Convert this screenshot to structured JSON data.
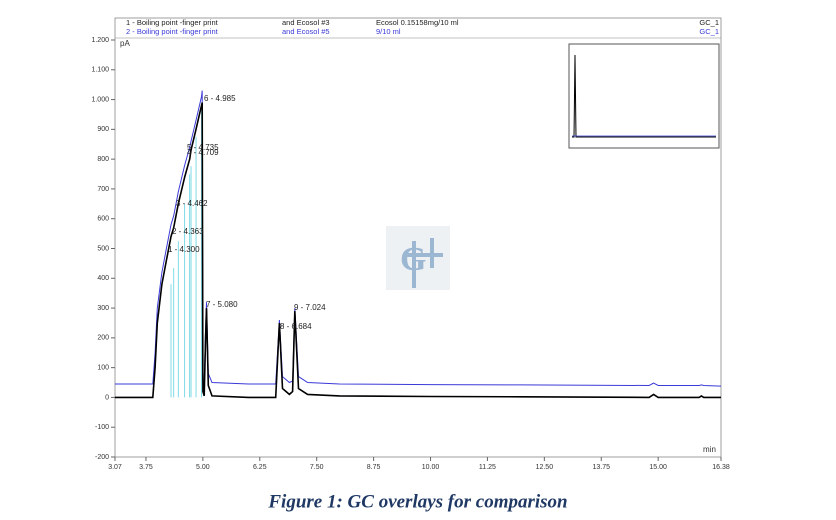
{
  "chart_data": {
    "type": "line",
    "header": [
      [
        "1 - Boiling point -finger print",
        "and Ecosol #3",
        "Ecosol 0.15158mg/10 ml",
        "GC_1"
      ],
      [
        "2 - Boiling point -finger print",
        "and Ecosol #5",
        "9/10 ml",
        "GC_1"
      ]
    ],
    "y_label": "pA",
    "x_label": "min",
    "caption": "Figure 1: GC overlays for comparison",
    "x": [
      3.07,
      3.9,
      3.95,
      4.0,
      4.1,
      4.2,
      4.3,
      4.36,
      4.46,
      4.6,
      4.71,
      4.74,
      4.85,
      4.97,
      4.985,
      5.0,
      5.03,
      5.06,
      5.08,
      5.12,
      5.2,
      6.0,
      6.6,
      6.68,
      6.75,
      6.9,
      6.97,
      7.02,
      7.1,
      7.3,
      8,
      10,
      12,
      14.8,
      14.9,
      15,
      15.9,
      15.95,
      16,
      16.38
    ],
    "series": [
      {
        "name": "1",
        "color": "#000000",
        "values": [
          0,
          0,
          100,
          250,
          380,
          460,
          540,
          570,
          650,
          740,
          800,
          830,
          900,
          980,
          990,
          20,
          5,
          200,
          300,
          40,
          5,
          0,
          0,
          250,
          30,
          10,
          20,
          290,
          30,
          10,
          5,
          3,
          2,
          0,
          10,
          0,
          0,
          5,
          0,
          0
        ]
      },
      {
        "name": "2",
        "color": "#3a3ad8",
        "values": [
          45,
          45,
          150,
          300,
          420,
          500,
          580,
          610,
          690,
          780,
          840,
          860,
          930,
          1010,
          1030,
          60,
          50,
          230,
          320,
          80,
          50,
          45,
          45,
          260,
          70,
          50,
          55,
          300,
          70,
          50,
          45,
          43,
          42,
          40,
          48,
          40,
          40,
          42,
          40,
          38
        ]
      }
    ],
    "annotations": [
      "6 - 4.985",
      "5 - 4.735",
      "4 - 4.709",
      "3 - 4.462",
      "2 - 4.363",
      "1 - 4.300",
      "7 - 5.080",
      "8 - 6.684",
      "9 - 7.024"
    ],
    "xlim": [
      3.07,
      16.38
    ],
    "xticks": [
      {
        "value": 3.07,
        "label": "3.07"
      },
      {
        "value": 3.75,
        "label": "3.75"
      },
      {
        "value": 5,
        "label": "5.00"
      },
      {
        "value": 6.25,
        "label": "6.25"
      },
      {
        "value": 7.5,
        "label": "7.50"
      },
      {
        "value": 8.75,
        "label": "8.75"
      },
      {
        "value": 10,
        "label": "10.00"
      },
      {
        "value": 11.25,
        "label": "11.25"
      },
      {
        "value": 12.5,
        "label": "12.50"
      },
      {
        "value": 13.75,
        "label": "13.75"
      },
      {
        "value": 15,
        "label": "15.00"
      },
      {
        "value": 16.38,
        "label": "16.38"
      }
    ],
    "ylim": [
      -200,
      1200
    ],
    "yticks": [
      -200,
      -100,
      0,
      100,
      200,
      300,
      400,
      500,
      600,
      700,
      800,
      900,
      {
        "value": 1000,
        "label": "1.000"
      },
      {
        "value": 1100,
        "label": "1.100"
      },
      {
        "value": 1200,
        "label": "1.200"
      }
    ],
    "grid": false
  }
}
